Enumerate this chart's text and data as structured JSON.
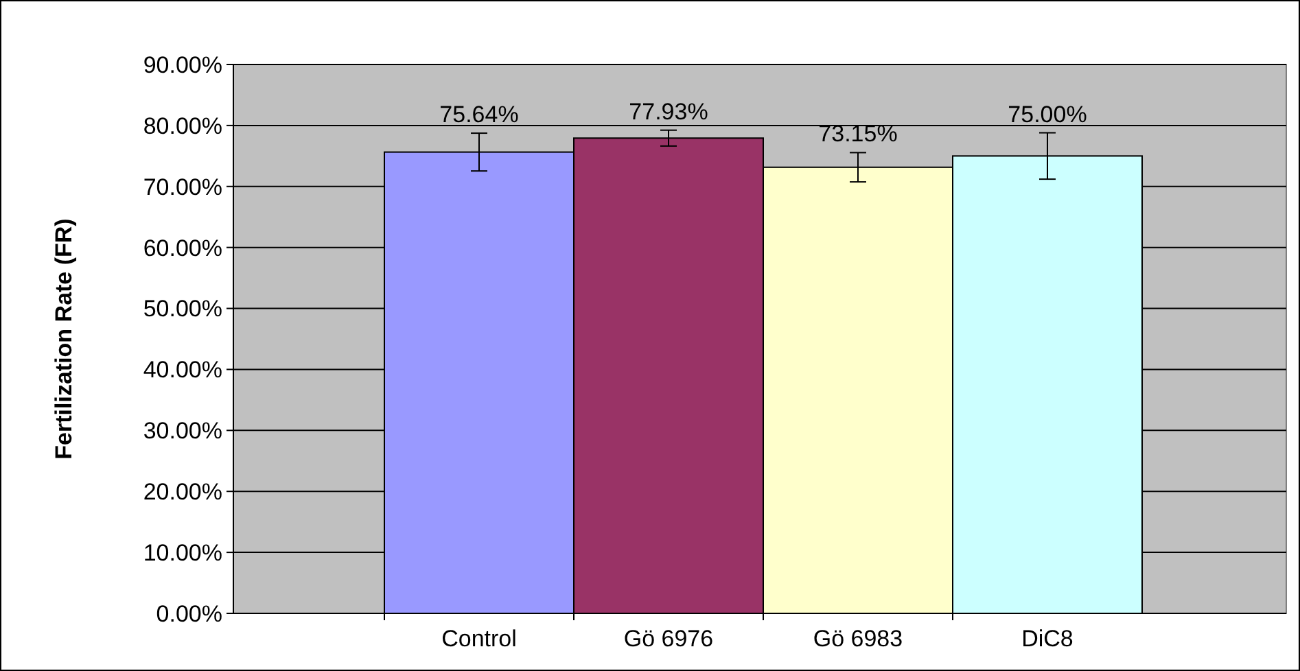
{
  "chart_data": {
    "type": "bar",
    "ylabel": "Fertilization Rate (FR)",
    "categories": [
      "Control",
      "Gö 6976",
      "Gö 6983",
      "DiC8"
    ],
    "values": [
      75.64,
      77.93,
      73.15,
      75.0
    ],
    "colors": [
      "#9999ff",
      "#993366",
      "#ffffcc",
      "#ccffff"
    ],
    "errors": [
      3.1,
      1.3,
      2.4,
      3.8
    ],
    "value_labels": [
      "75.64%",
      "77.93%",
      "73.15%",
      "75.00%"
    ],
    "ylim": [
      0,
      90
    ],
    "yticks": [
      {
        "value": 0,
        "label": "0.00%"
      },
      {
        "value": 10,
        "label": "10.00%"
      },
      {
        "value": 20,
        "label": "20.00%"
      },
      {
        "value": 30,
        "label": "30.00%"
      },
      {
        "value": 40,
        "label": "40.00%"
      },
      {
        "value": 50,
        "label": "50.00%"
      },
      {
        "value": 60,
        "label": "60.00%"
      },
      {
        "value": 70,
        "label": "70.00%"
      },
      {
        "value": 80,
        "label": "80.00%"
      },
      {
        "value": 90,
        "label": "90.00%"
      }
    ],
    "grid": "y"
  }
}
